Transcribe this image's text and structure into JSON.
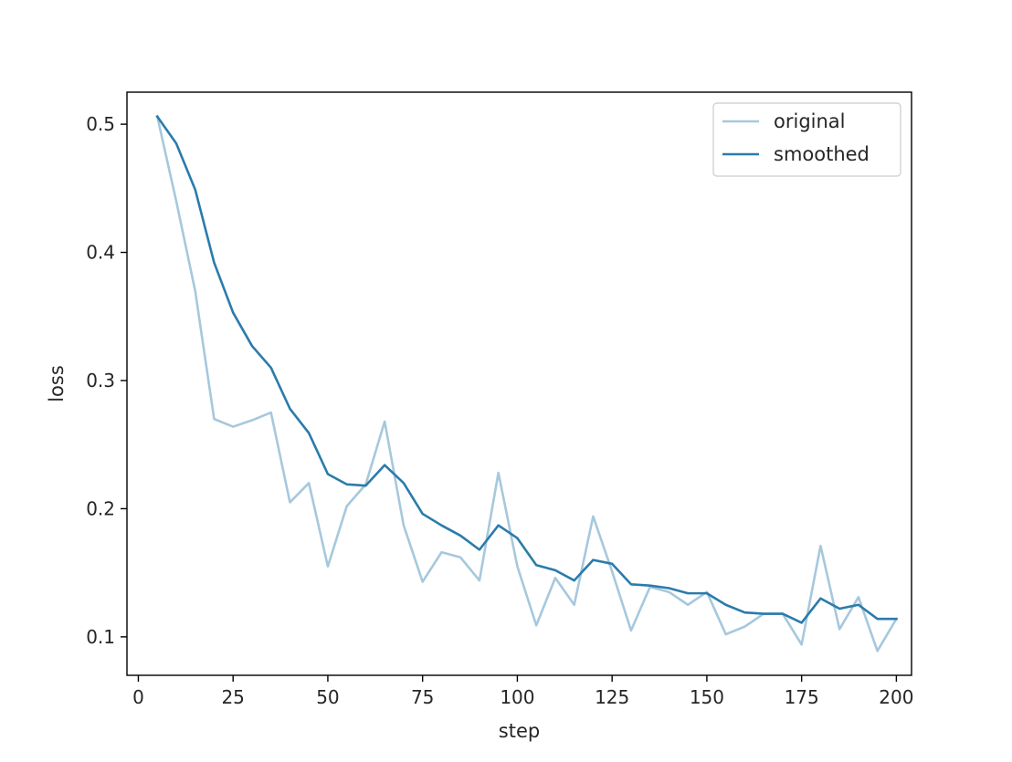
{
  "chart_data": {
    "type": "line",
    "title": "",
    "xlabel": "step",
    "ylabel": "loss",
    "xlim": [
      -3,
      204
    ],
    "ylim": [
      0.07,
      0.525
    ],
    "xticks": [
      0,
      25,
      50,
      75,
      100,
      125,
      150,
      175,
      200
    ],
    "yticks": [
      0.1,
      0.2,
      0.3,
      0.4,
      0.5
    ],
    "xtick_labels": [
      "0",
      "25",
      "50",
      "75",
      "100",
      "125",
      "150",
      "175",
      "200"
    ],
    "ytick_labels": [
      "0.1",
      "0.2",
      "0.3",
      "0.4",
      "0.5"
    ],
    "grid": false,
    "legend": "upper right",
    "x": [
      5,
      10,
      15,
      20,
      25,
      30,
      35,
      40,
      45,
      50,
      55,
      60,
      65,
      70,
      75,
      80,
      85,
      90,
      95,
      100,
      105,
      110,
      115,
      120,
      125,
      130,
      135,
      140,
      145,
      150,
      155,
      160,
      165,
      170,
      175,
      180,
      185,
      190,
      195,
      200
    ],
    "series": [
      {
        "name": "original",
        "color": "#a6c8dd",
        "values": [
          0.506,
          0.44,
          0.37,
          0.27,
          0.264,
          0.269,
          0.275,
          0.205,
          0.22,
          0.155,
          0.202,
          0.219,
          0.268,
          0.187,
          0.143,
          0.166,
          0.162,
          0.144,
          0.228,
          0.155,
          0.109,
          0.146,
          0.125,
          0.194,
          0.151,
          0.105,
          0.139,
          0.135,
          0.125,
          0.135,
          0.102,
          0.108,
          0.118,
          0.118,
          0.094,
          0.171,
          0.106,
          0.131,
          0.089,
          0.114
        ]
      },
      {
        "name": "smoothed",
        "color": "#2b7bab",
        "values": [
          0.506,
          0.485,
          0.449,
          0.392,
          0.353,
          0.327,
          0.31,
          0.278,
          0.259,
          0.227,
          0.219,
          0.218,
          0.234,
          0.22,
          0.196,
          0.187,
          0.179,
          0.168,
          0.187,
          0.177,
          0.156,
          0.152,
          0.144,
          0.16,
          0.157,
          0.141,
          0.14,
          0.138,
          0.134,
          0.134,
          0.125,
          0.119,
          0.118,
          0.118,
          0.111,
          0.13,
          0.122,
          0.125,
          0.114,
          0.114
        ]
      }
    ]
  }
}
